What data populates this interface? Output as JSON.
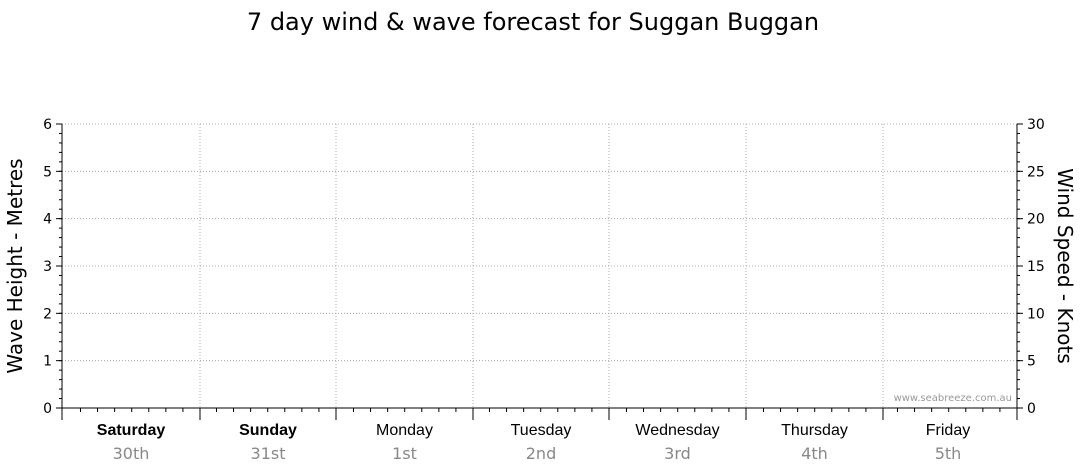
{
  "chart_data": {
    "type": "line",
    "title": "7 day wind & wave forecast for Suggan Buggan",
    "ylabel_left": "Wave Height - Metres",
    "ylabel_right": "Wind Speed - Knots",
    "ylim_left": [
      0,
      6
    ],
    "ylim_right": [
      0,
      30
    ],
    "yticks_left": [
      "0",
      "1",
      "2",
      "3",
      "4",
      "5",
      "6"
    ],
    "yticks_right": [
      "0",
      "5",
      "10",
      "15",
      "20",
      "25",
      "30"
    ],
    "days": [
      {
        "day": "Saturday",
        "date": "30th",
        "bold": true
      },
      {
        "day": "Sunday",
        "date": "31st",
        "bold": true
      },
      {
        "day": "Monday",
        "date": "1st",
        "bold": false
      },
      {
        "day": "Tuesday",
        "date": "2nd",
        "bold": false
      },
      {
        "day": "Wednesday",
        "date": "3rd",
        "bold": false
      },
      {
        "day": "Thursday",
        "date": "4th",
        "bold": false
      },
      {
        "day": "Friday",
        "date": "5th",
        "bold": false
      }
    ],
    "series": [],
    "grid": true,
    "watermark": "www.seabreeze.com.au"
  }
}
